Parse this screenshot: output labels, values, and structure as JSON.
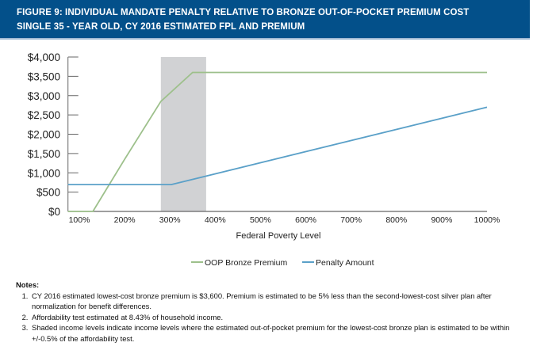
{
  "header": {
    "title_line1": "FIGURE 9: INDIVIDUAL MANDATE PENALTY RELATIVE TO BRONZE OUT-OF-POCKET PREMIUM COST",
    "title_line2": "SINGLE 35 - YEAR OLD, CY 2016 ESTIMATED FPL AND PREMIUM"
  },
  "chart_data": {
    "type": "line",
    "xlabel": "Federal Poverty Level",
    "ylabel": "",
    "xlim": [
      75,
      1000
    ],
    "ylim": [
      0,
      4000
    ],
    "x_ticks": [
      "100%",
      "200%",
      "300%",
      "400%",
      "500%",
      "600%",
      "700%",
      "800%",
      "900%",
      "1000%"
    ],
    "x_tick_values": [
      100,
      200,
      300,
      400,
      500,
      600,
      700,
      800,
      900,
      1000
    ],
    "y_ticks": [
      "$0",
      "$500",
      "$1,000",
      "$1,500",
      "$2,000",
      "$2,500",
      "$3,000",
      "$3,500",
      "$4,000"
    ],
    "y_tick_values": [
      0,
      500,
      1000,
      1500,
      2000,
      2500,
      3000,
      3500,
      4000
    ],
    "shaded_region": {
      "x": [
        280,
        380
      ],
      "color": "#d1d2d4"
    },
    "legend_position": "bottom",
    "series": [
      {
        "name": "OOP Bronze Premium",
        "color": "#9dc08b",
        "points": [
          [
            75,
            0
          ],
          [
            130,
            0
          ],
          [
            200,
            1350
          ],
          [
            280,
            2850
          ],
          [
            350,
            3600
          ],
          [
            1000,
            3600
          ]
        ]
      },
      {
        "name": "Penalty Amount",
        "color": "#5aa0c8",
        "points": [
          [
            75,
            695
          ],
          [
            303,
            695
          ],
          [
            1000,
            2700
          ]
        ]
      }
    ]
  },
  "notes": {
    "heading": "Notes:",
    "items": [
      "CY 2016 estimated lowest-cost bronze premium is $3,600. Premium is estimated to be 5% less than the second-lowest-cost silver plan after normalization for benefit differences.",
      "Affordability test estimated at 8.43% of household income.",
      "Shaded income levels indicate income levels where the estimated out-of-pocket premium for the lowest-cost bronze plan is estimated to be within +/-0.5% of the affordability test."
    ]
  }
}
